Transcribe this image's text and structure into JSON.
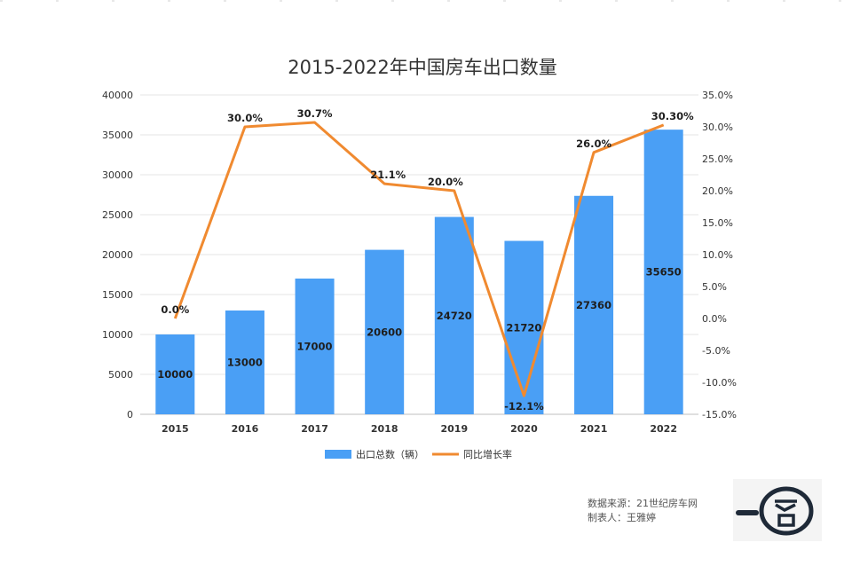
{
  "chart_data": {
    "type": "bar+line",
    "title": "2015-2022年中国房车出口数量",
    "categories": [
      "2015",
      "2016",
      "2017",
      "2018",
      "2019",
      "2020",
      "2021",
      "2022"
    ],
    "series": [
      {
        "name": "出口总数（辆）",
        "type": "bar",
        "axis": "left",
        "color": "#4a9ff5",
        "values": [
          10000,
          13000,
          17000,
          20600,
          24720,
          21720,
          27360,
          35650
        ],
        "labels": [
          "10000",
          "13000",
          "17000",
          "20600",
          "24720",
          "21720",
          "27360",
          "35650"
        ]
      },
      {
        "name": "同比增长率",
        "type": "line",
        "axis": "right",
        "color": "#f08a30",
        "values": [
          0.0,
          30.0,
          30.7,
          21.1,
          20.0,
          -12.1,
          26.0,
          30.3
        ],
        "labels": [
          "0.0%",
          "30.0%",
          "30.7%",
          "21.1%",
          "20.0%",
          "-12.1%",
          "26.0%",
          "30.30%"
        ]
      }
    ],
    "y_left": {
      "min": 0,
      "max": 40000,
      "ticks": [
        "0",
        "5000",
        "10000",
        "15000",
        "20000",
        "25000",
        "30000",
        "35000",
        "40000"
      ]
    },
    "y_right": {
      "min": -15,
      "max": 35,
      "ticks": [
        "-15.0%",
        "-10.0%",
        "-5.0%",
        "0.0%",
        "5.0%",
        "10.0%",
        "15.0%",
        "20.0%",
        "25.0%",
        "30.0%",
        "35.0%"
      ]
    },
    "grid": true,
    "legend": "bottom"
  },
  "source": {
    "line1": "数据来源：21世纪房车网",
    "line2": "制表人：王雅婷"
  },
  "logo": {
    "text": "一客"
  },
  "colors": {
    "bar": "#4a9ff5",
    "line": "#f08a30",
    "grid": "#e6e6e6",
    "text": "#333333"
  }
}
